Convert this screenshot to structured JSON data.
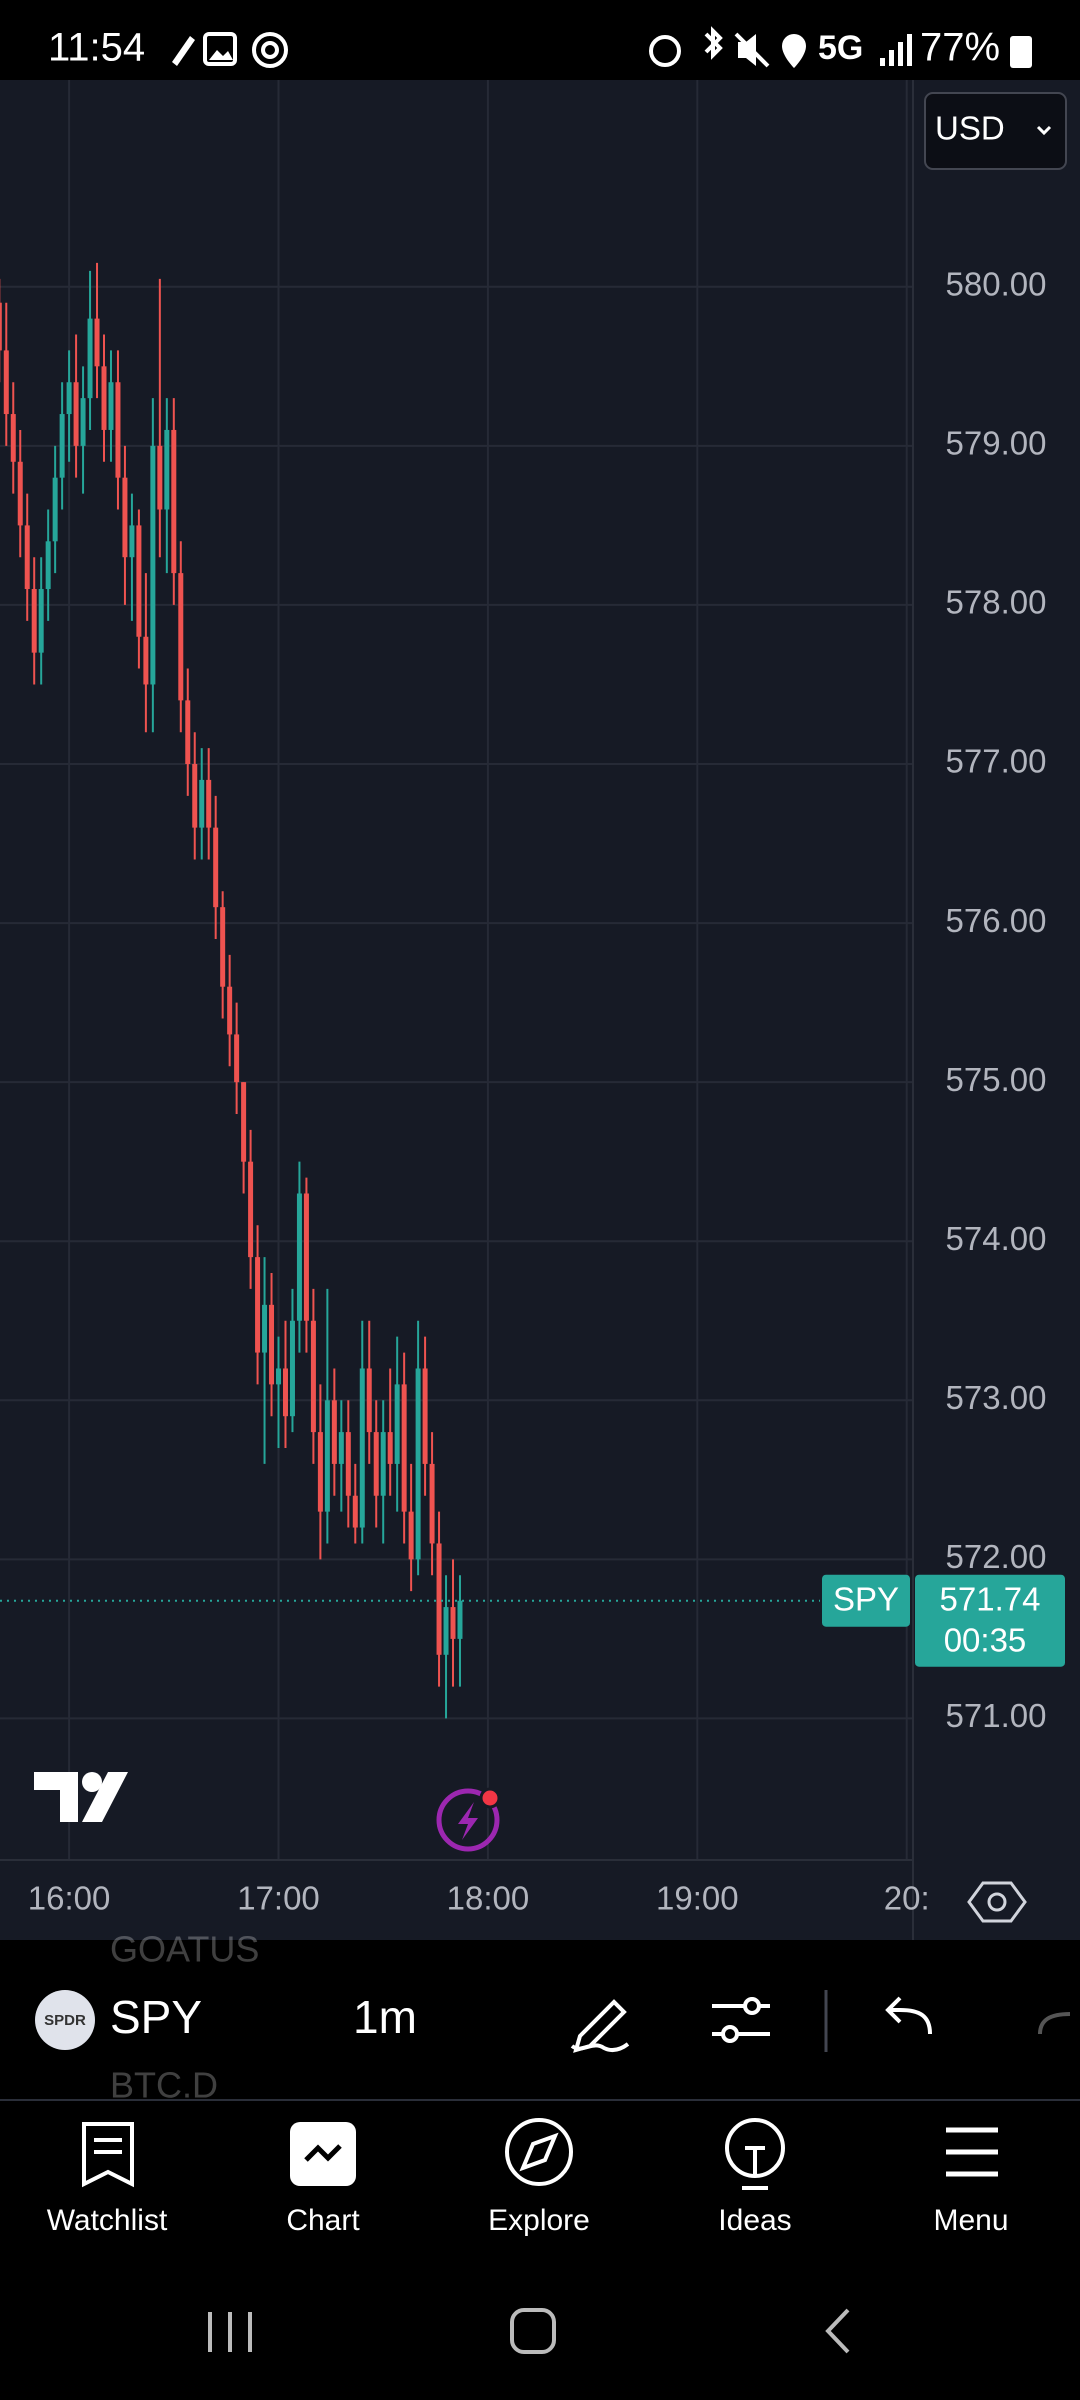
{
  "status_bar": {
    "time": "11:54",
    "network": "5G",
    "battery": "77%"
  },
  "chart_data": {
    "type": "candlestick",
    "x": [
      940,
      942,
      944,
      946,
      948,
      950,
      952,
      954,
      956,
      958,
      960,
      962,
      964,
      966,
      968,
      970,
      972,
      974,
      976,
      978,
      980,
      982,
      984,
      986,
      988,
      990,
      992,
      994,
      996,
      998,
      1000,
      1002,
      1004,
      1006,
      1008,
      1010,
      1012,
      1014,
      1016,
      1018,
      1020,
      1022,
      1024,
      1026,
      1028,
      1030,
      1032,
      1034,
      1036,
      1038,
      1040,
      1042,
      1044,
      1046,
      1048,
      1050,
      1052,
      1054,
      1056,
      1058,
      1060,
      1062,
      1064,
      1066,
      1068,
      1070,
      1072
    ],
    "open": [
      579.9,
      579.6,
      579.2,
      578.9,
      578.5,
      578.1,
      577.7,
      578.1,
      578.4,
      578.8,
      579.2,
      579.4,
      579.0,
      579.3,
      579.8,
      579.5,
      579.1,
      579.4,
      578.8,
      578.3,
      578.5,
      577.8,
      577.5,
      579.0,
      578.6,
      579.1,
      578.2,
      577.4,
      577.0,
      576.6,
      576.9,
      576.6,
      576.1,
      575.6,
      575.3,
      575.0,
      574.5,
      573.9,
      573.3,
      573.6,
      573.1,
      573.2,
      572.9,
      573.5,
      574.3,
      573.5,
      572.8,
      572.3,
      573.0,
      572.6,
      572.8,
      572.4,
      572.2,
      573.2,
      572.8,
      572.4,
      572.8,
      572.6,
      573.1,
      572.3,
      572.0,
      573.2,
      572.6,
      572.1,
      571.4,
      571.7,
      571.5
    ],
    "high": [
      580.05,
      579.9,
      579.4,
      579.1,
      578.7,
      578.3,
      578.3,
      578.6,
      579.0,
      579.4,
      579.6,
      579.7,
      579.5,
      580.1,
      580.15,
      579.7,
      579.6,
      579.6,
      579.0,
      578.7,
      578.6,
      578.2,
      579.3,
      580.05,
      579.3,
      579.3,
      578.4,
      577.6,
      577.2,
      577.1,
      577.1,
      576.8,
      576.2,
      575.8,
      575.5,
      575.0,
      574.7,
      574.1,
      573.9,
      573.8,
      573.4,
      573.5,
      573.7,
      574.5,
      574.4,
      573.7,
      573.1,
      573.7,
      573.2,
      573.0,
      573.0,
      572.6,
      573.5,
      573.5,
      573.0,
      573.0,
      573.2,
      573.4,
      573.3,
      572.6,
      573.5,
      573.4,
      572.8,
      572.3,
      571.9,
      572.0,
      571.9
    ],
    "low": [
      579.4,
      579.0,
      578.7,
      578.3,
      577.9,
      577.5,
      577.5,
      577.9,
      578.2,
      578.6,
      578.9,
      578.8,
      578.7,
      579.1,
      579.3,
      578.9,
      578.9,
      578.6,
      578.0,
      577.9,
      577.6,
      577.2,
      577.2,
      578.3,
      578.2,
      578.0,
      577.2,
      576.8,
      576.4,
      576.4,
      576.4,
      575.9,
      575.4,
      575.1,
      574.8,
      574.3,
      573.7,
      573.1,
      572.6,
      572.9,
      572.7,
      572.7,
      572.8,
      573.3,
      573.3,
      572.6,
      572.0,
      572.1,
      572.4,
      572.3,
      572.2,
      572.1,
      572.1,
      572.6,
      572.2,
      572.1,
      572.4,
      572.3,
      572.1,
      571.8,
      571.9,
      572.4,
      571.9,
      571.2,
      571.0,
      571.2,
      571.2
    ],
    "close": [
      579.6,
      579.2,
      578.9,
      578.5,
      578.1,
      577.7,
      578.1,
      578.4,
      578.8,
      579.2,
      579.4,
      579.0,
      579.3,
      579.8,
      579.5,
      579.1,
      579.4,
      578.8,
      578.3,
      578.5,
      577.8,
      577.5,
      579.0,
      578.6,
      579.1,
      578.2,
      577.4,
      577.0,
      576.6,
      576.9,
      576.6,
      576.1,
      575.6,
      575.3,
      575.0,
      574.5,
      573.9,
      573.3,
      573.6,
      573.1,
      573.2,
      572.9,
      573.5,
      574.3,
      573.5,
      572.8,
      572.3,
      573.0,
      572.6,
      572.8,
      572.4,
      572.2,
      573.2,
      572.8,
      572.4,
      572.8,
      572.6,
      573.1,
      572.3,
      572.0,
      573.2,
      572.6,
      572.1,
      571.4,
      571.7,
      571.5,
      571.74
    ],
    "xlim": [
      940.2,
      1201.8
    ],
    "xticks": [
      {
        "value": 960,
        "label": "16:00"
      },
      {
        "value": 1020,
        "label": "17:00"
      },
      {
        "value": 1080,
        "label": "18:00"
      },
      {
        "value": 1140,
        "label": "19:00"
      },
      {
        "value": 1200,
        "label": "20:"
      }
    ],
    "ylim": [
      570.11,
      581.3
    ],
    "yticks": [
      {
        "value": 571,
        "label": "571.00"
      },
      {
        "value": 572,
        "label": "572.00"
      },
      {
        "value": 573,
        "label": "573.00"
      },
      {
        "value": 574,
        "label": "574.00"
      },
      {
        "value": 575,
        "label": "575.00"
      },
      {
        "value": 576,
        "label": "576.00"
      },
      {
        "value": 577,
        "label": "577.00"
      },
      {
        "value": 578,
        "label": "578.00"
      },
      {
        "value": 579,
        "label": "579.00"
      },
      {
        "value": 580,
        "label": "580.00"
      }
    ],
    "up_color": "#26a69a",
    "down_color": "#ef5350",
    "grid": true,
    "currency": "USD",
    "symbol": "SPY",
    "last_price": 571.74,
    "countdown": "00:35"
  },
  "toolbar": {
    "list_above": "GOATUS",
    "symbol_logo": "SPDR",
    "symbol": "SPY",
    "interval": "1m",
    "list_below": "BTC.D"
  },
  "nav": [
    "Watchlist",
    "Chart",
    "Explore",
    "Ideas",
    "Menu"
  ]
}
